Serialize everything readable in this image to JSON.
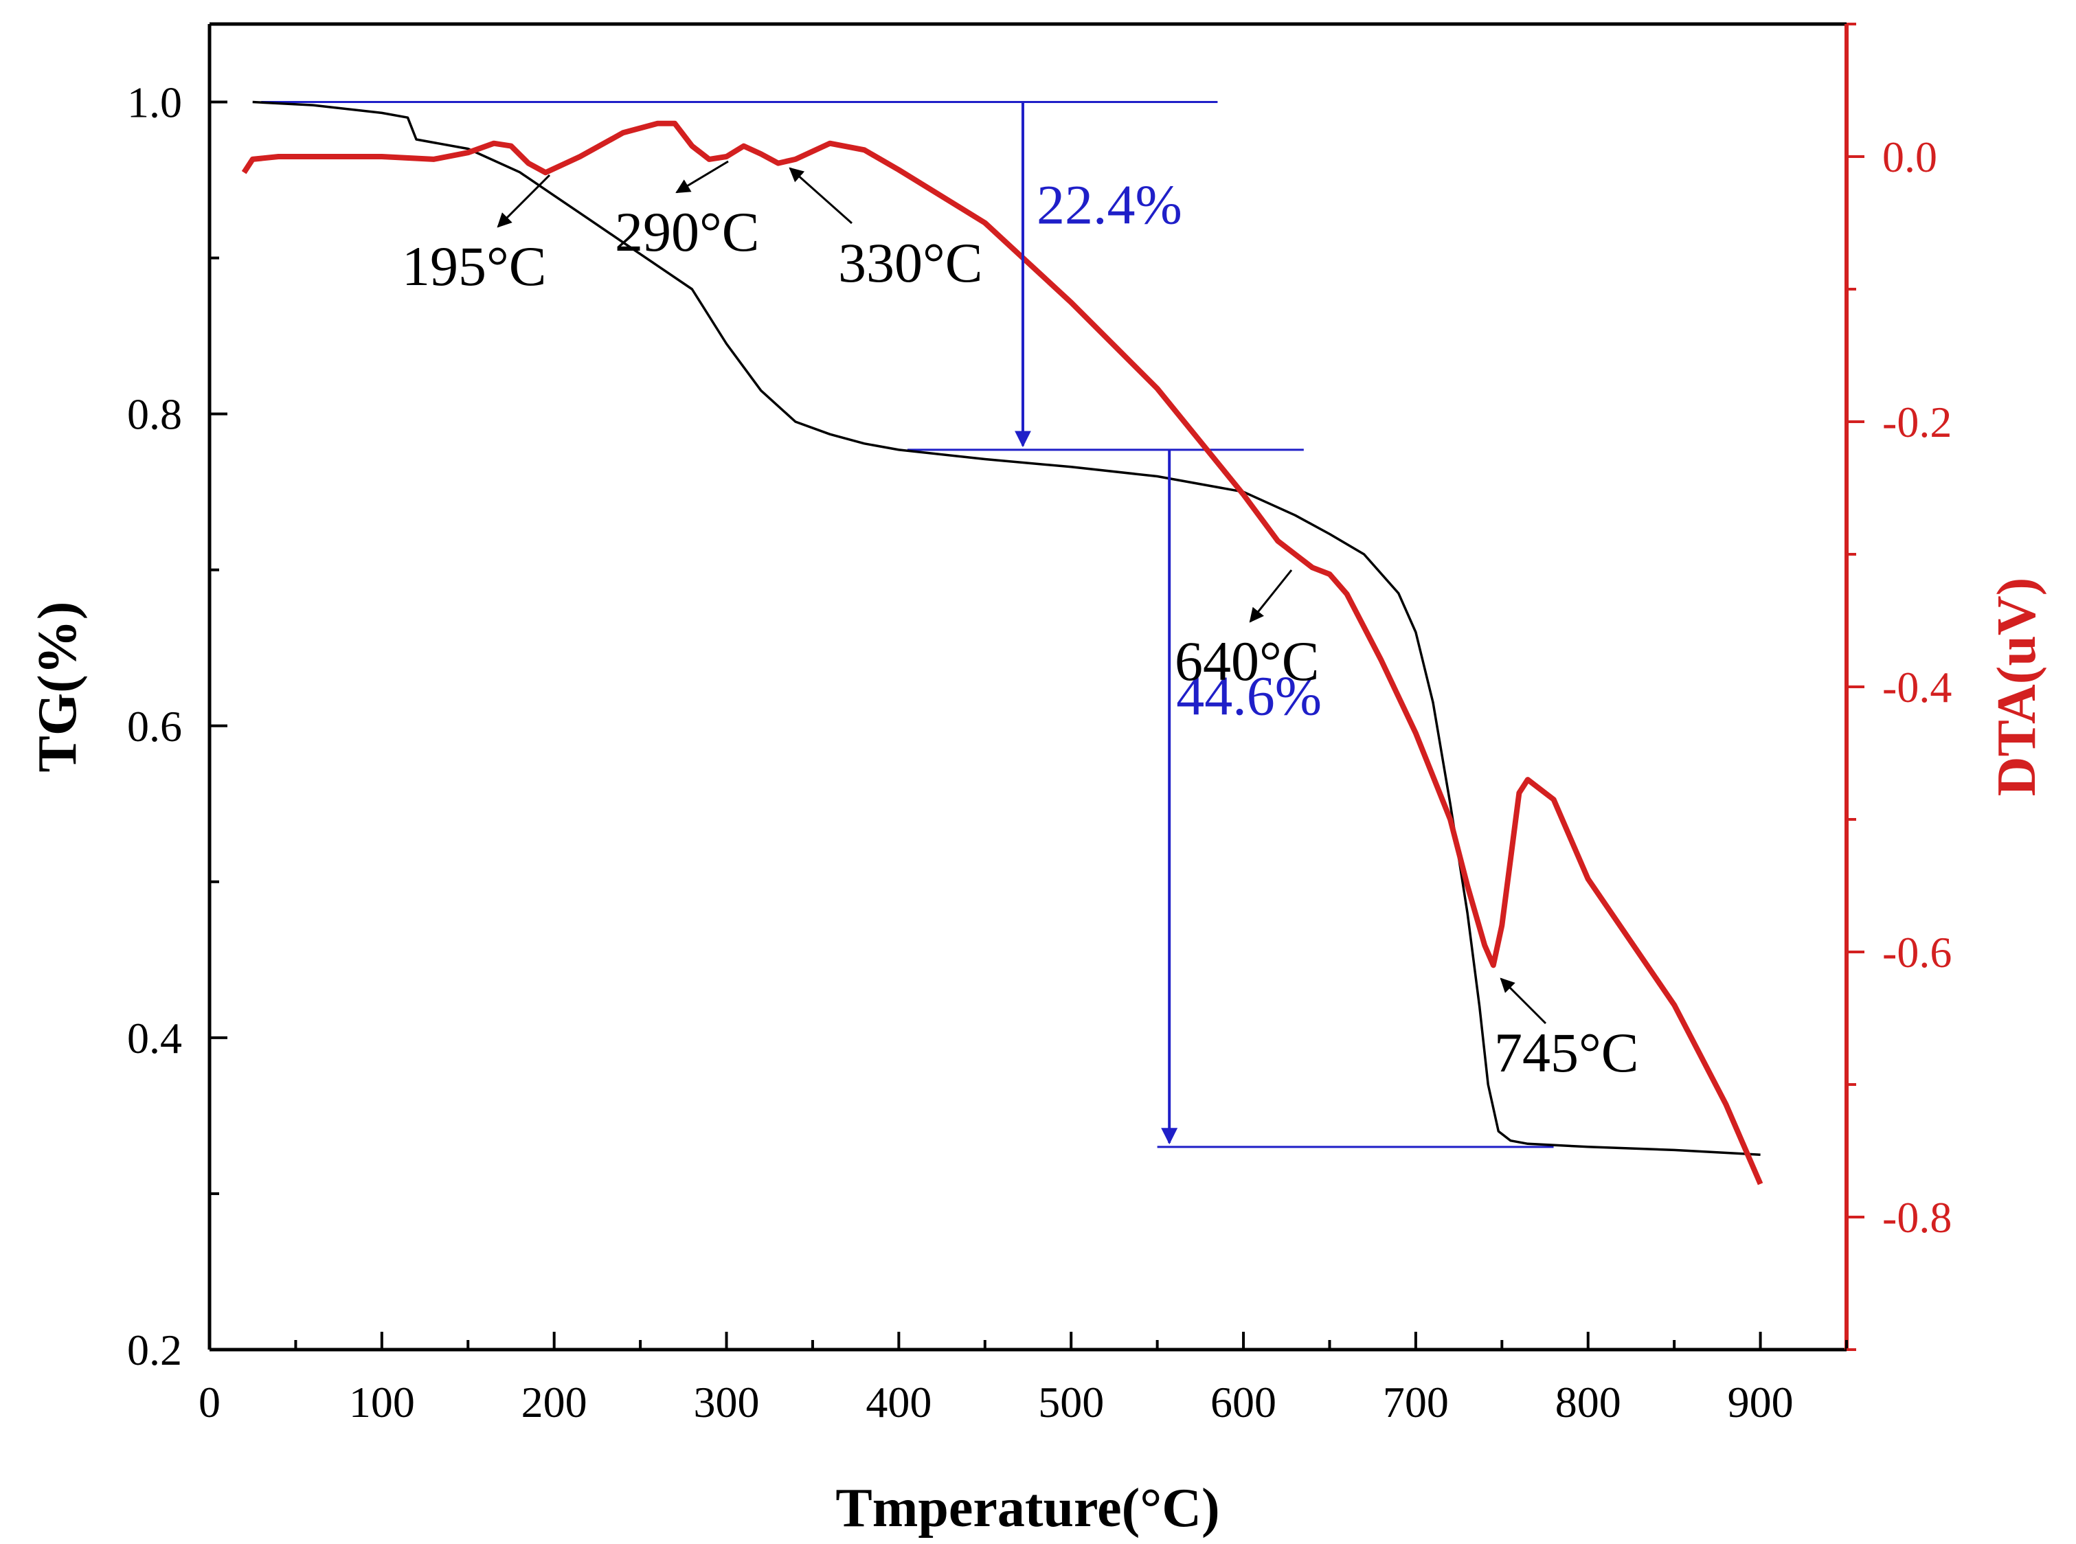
{
  "chart_data": {
    "type": "line",
    "xlabel": "Tmperature(°C)",
    "ylabel_left": "TG(%)",
    "ylabel_right": "DTA(uV)",
    "xlim": [
      0,
      950
    ],
    "ylim_left": [
      0.2,
      1.05
    ],
    "ylim_right": [
      -0.9,
      0.1
    ],
    "x_ticks": [
      0,
      100,
      200,
      300,
      400,
      500,
      600,
      700,
      800,
      900
    ],
    "x_tick_labels": [
      "0",
      "100",
      "200",
      "300",
      "400",
      "500",
      "600",
      "700",
      "800",
      "900"
    ],
    "y_left_ticks": [
      0.2,
      0.4,
      0.6,
      0.8,
      1.0
    ],
    "y_left_tick_labels": [
      "0.2",
      "0.4",
      "0.6",
      "0.8",
      "1.0"
    ],
    "y_right_ticks": [
      0.0,
      -0.2,
      -0.4,
      -0.6,
      -0.8
    ],
    "y_right_tick_labels": [
      "0.0",
      "-0.2",
      "-0.4",
      "-0.6",
      "-0.8"
    ],
    "series": [
      {
        "name": "TG",
        "axis": "left",
        "color": "#000000",
        "x": [
          25,
          60,
          100,
          115,
          120,
          150,
          180,
          200,
          220,
          240,
          260,
          280,
          300,
          320,
          340,
          360,
          380,
          400,
          450,
          500,
          550,
          600,
          630,
          650,
          670,
          690,
          700,
          710,
          720,
          730,
          737,
          742,
          748,
          755,
          765,
          800,
          850,
          900
        ],
        "values": [
          1.0,
          0.998,
          0.993,
          0.99,
          0.976,
          0.97,
          0.955,
          0.94,
          0.925,
          0.91,
          0.895,
          0.88,
          0.845,
          0.815,
          0.795,
          0.787,
          0.781,
          0.777,
          0.771,
          0.766,
          0.76,
          0.75,
          0.735,
          0.723,
          0.71,
          0.685,
          0.66,
          0.615,
          0.55,
          0.48,
          0.42,
          0.37,
          0.34,
          0.334,
          0.332,
          0.33,
          0.328,
          0.325
        ]
      },
      {
        "name": "DTA",
        "axis": "right",
        "color": "#d32020",
        "x": [
          20,
          25,
          40,
          60,
          100,
          130,
          150,
          165,
          175,
          185,
          195,
          215,
          240,
          260,
          270,
          280,
          290,
          300,
          310,
          320,
          330,
          340,
          360,
          380,
          400,
          450,
          500,
          550,
          600,
          620,
          630,
          640,
          650,
          660,
          680,
          700,
          720,
          730,
          740,
          745,
          750,
          755,
          760,
          765,
          780,
          800,
          850,
          880,
          900
        ],
        "values": [
          -0.012,
          -0.002,
          0.0,
          0.0,
          0.0,
          -0.002,
          0.003,
          0.01,
          0.008,
          -0.005,
          -0.012,
          0.0,
          0.018,
          0.025,
          0.025,
          0.008,
          -0.002,
          0.0,
          0.008,
          0.002,
          -0.005,
          -0.002,
          0.01,
          0.005,
          -0.01,
          -0.05,
          -0.11,
          -0.175,
          -0.255,
          -0.29,
          -0.3,
          -0.31,
          -0.315,
          -0.33,
          -0.38,
          -0.435,
          -0.5,
          -0.55,
          -0.595,
          -0.61,
          -0.58,
          -0.53,
          -0.48,
          -0.47,
          -0.485,
          -0.545,
          -0.64,
          -0.715,
          -0.775
        ]
      }
    ],
    "reference_lines": [
      {
        "from": [
          30,
          1.0
        ],
        "to": [
          585,
          1.0
        ],
        "axis": "left"
      },
      {
        "from": [
          405,
          0.777
        ],
        "to": [
          635,
          0.777
        ],
        "axis": "left"
      },
      {
        "from": [
          550,
          0.33
        ],
        "to": [
          780,
          0.33
        ],
        "axis": "left"
      }
    ],
    "step_arrows": [
      {
        "x": 472,
        "from": 1.0,
        "to": 0.777,
        "label": "22.4%"
      },
      {
        "x": 557,
        "from": 0.777,
        "to": 0.33,
        "label": "44.6%"
      }
    ],
    "peak_annotations": [
      {
        "label": "195°C",
        "x": 195
      },
      {
        "label": "290°C",
        "x": 290
      },
      {
        "label": "330°C",
        "x": 330
      },
      {
        "label": "640°C",
        "x": 640
      },
      {
        "label": "745°C",
        "x": 745
      }
    ]
  }
}
